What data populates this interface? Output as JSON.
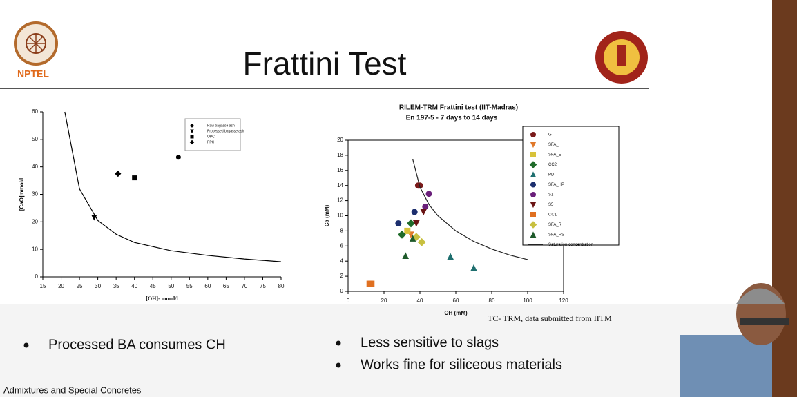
{
  "slide": {
    "logo_text": "NPTEL",
    "title": "Frattini Test",
    "bullets_left": [
      "Processed BA consumes CH"
    ],
    "bullets_right": [
      "Less sensitive to slags",
      "Works fine for siliceous materials"
    ],
    "footer": "Admixtures and Special Concretes"
  },
  "chart_data": [
    {
      "type": "scatter",
      "xlabel": "[OH]- mmol/l",
      "ylabel": "[CaO]mmol/l",
      "xlim": [
        15,
        80
      ],
      "ylim": [
        0,
        60
      ],
      "xticks": [
        15,
        20,
        25,
        30,
        35,
        40,
        45,
        50,
        55,
        60,
        65,
        70,
        75,
        80
      ],
      "yticks": [
        0,
        10,
        20,
        30,
        40,
        50,
        60
      ],
      "legend": "upper right",
      "series": [
        {
          "name": "Raw bagasse ash",
          "marker": "circle",
          "color": "#000000",
          "x": [
            52
          ],
          "y": [
            43.5
          ]
        },
        {
          "name": "Processed bagasse ash",
          "marker": "triangle-down",
          "color": "#000000",
          "x": [
            29
          ],
          "y": [
            21.5
          ]
        },
        {
          "name": "OPC",
          "marker": "square",
          "color": "#000000",
          "x": [
            40
          ],
          "y": [
            36
          ]
        },
        {
          "name": "PPC",
          "marker": "diamond",
          "color": "#000000",
          "x": [
            35.5
          ],
          "y": [
            37.5
          ]
        },
        {
          "marker": "line",
          "color": "#000000",
          "x": [
            21,
            25,
            30,
            35,
            40,
            50,
            60,
            70,
            80
          ],
          "y": [
            60,
            32,
            20.5,
            15.5,
            12.5,
            9.5,
            7.8,
            6.5,
            5.5
          ]
        }
      ]
    },
    {
      "type": "scatter",
      "title": "RILEM-TRM Frattini test (IIT-Madras)",
      "subtitle": "En 197-5 - 7 days to 14 days",
      "xlabel": "OH (mM)",
      "ylabel": "Ca (mM)",
      "xlim": [
        0,
        120
      ],
      "ylim": [
        0,
        20
      ],
      "xticks": [
        0,
        20,
        40,
        60,
        80,
        100,
        120
      ],
      "yticks": [
        0,
        2,
        4,
        6,
        8,
        10,
        12,
        14,
        16,
        18,
        20
      ],
      "legend": "right",
      "annotation": "TC- TRM, data submitted from IITM",
      "series": [
        {
          "name": "G",
          "marker": "circle",
          "color": "#7a1a1a",
          "x": [
            39,
            40
          ],
          "y": [
            14,
            14
          ]
        },
        {
          "name": "SFA_I",
          "marker": "triangle-down",
          "color": "#e0782a",
          "x": [
            35
          ],
          "y": [
            7.5
          ]
        },
        {
          "name": "SFA_E",
          "marker": "square",
          "color": "#d8c23a",
          "x": [
            33
          ],
          "y": [
            8
          ]
        },
        {
          "name": "CC2",
          "marker": "diamond",
          "color": "#1f6b2a",
          "x": [
            30,
            35
          ],
          "y": [
            7.5,
            9
          ]
        },
        {
          "name": "PD",
          "marker": "triangle-up",
          "color": "#1f6f6f",
          "x": [
            57,
            70
          ],
          "y": [
            4.6,
            3.1
          ]
        },
        {
          "name": "SFA_HP",
          "marker": "circle",
          "color": "#1c2f6e",
          "x": [
            37,
            28
          ],
          "y": [
            10.5,
            9
          ]
        },
        {
          "name": "S1",
          "marker": "circle",
          "color": "#6a1f7a",
          "x": [
            45,
            43
          ],
          "y": [
            12.9,
            11.2
          ]
        },
        {
          "name": "S5",
          "marker": "triangle-down",
          "color": "#6a1414",
          "x": [
            42,
            38
          ],
          "y": [
            10.5,
            9
          ]
        },
        {
          "name": "CC1",
          "marker": "square",
          "color": "#e07020",
          "x": [
            12,
            13
          ],
          "y": [
            1,
            1
          ]
        },
        {
          "name": "SFA_R",
          "marker": "diamond",
          "color": "#c8c040",
          "x": [
            41,
            38
          ],
          "y": [
            6.5,
            7.2
          ]
        },
        {
          "name": "SFA_HS",
          "marker": "triangle-up",
          "color": "#1e5a2a",
          "x": [
            32,
            36
          ],
          "y": [
            4.7,
            7
          ]
        },
        {
          "name": "Saturation concentration",
          "marker": "line",
          "color": "#222222",
          "x": [
            36,
            40,
            45,
            50,
            60,
            70,
            80,
            90,
            100
          ],
          "y": [
            17.5,
            13.8,
            11.5,
            10,
            8,
            6.6,
            5.6,
            4.8,
            4.2
          ]
        }
      ]
    }
  ]
}
